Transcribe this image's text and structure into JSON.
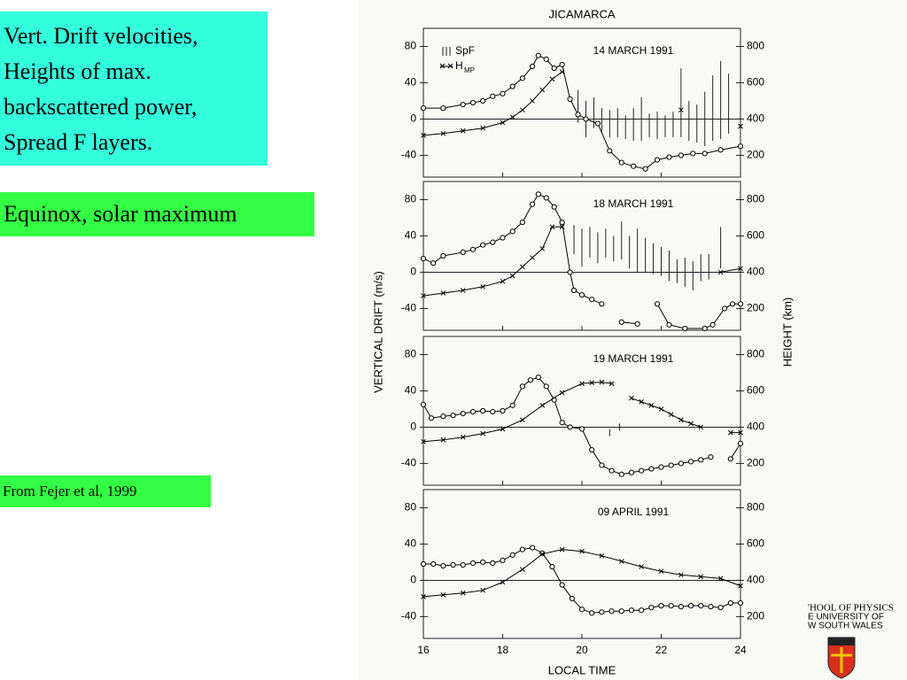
{
  "slide": {
    "box1": {
      "lines": [
        "Vert. Drift velocities,",
        "Heights of max.",
        "backscattered power,",
        "Spread F layers."
      ]
    },
    "box2": "Equinox, solar maximum",
    "source": "From Fejer et al, 1999",
    "logo": {
      "lines": [
        "'HOOL OF PHYSICS",
        "E UNIVERSITY OF",
        "W SOUTH WALES"
      ]
    }
  },
  "figure": {
    "title": "JICAMARCA",
    "ylabel": "VERTICAL DRIFT (m/s)",
    "y2label": "HEIGHT (km)",
    "xlabel": "LOCAL TIME"
  },
  "chart_data": [
    {
      "type": "line",
      "title": "14 MARCH 1991",
      "xlim": [
        16,
        24
      ],
      "xticks": [
        16,
        18,
        20,
        22,
        24
      ],
      "ylim": [
        -64,
        100
      ],
      "yticks": [
        -40,
        0,
        40,
        80
      ],
      "y2lim": [
        80,
        900
      ],
      "y2ticks": [
        200,
        400,
        600,
        800
      ],
      "series": [
        {
          "x": [
            16,
            16.5,
            17,
            17.25,
            17.5,
            17.75,
            18,
            18.25,
            18.5,
            18.75,
            18.9,
            19.1,
            19.3,
            19.5,
            19.7,
            19.9,
            20.1,
            20.4,
            20.7,
            21,
            21.3,
            21.6,
            21.9,
            22.2,
            22.5,
            22.8,
            23.1,
            23.5,
            24
          ],
          "values": [
            12,
            12,
            16,
            18,
            20,
            25,
            28,
            36,
            45,
            58,
            70,
            66,
            56,
            60,
            22,
            5,
            0,
            -5,
            -35,
            -48,
            -52,
            -55,
            -45,
            -42,
            -40,
            -38,
            -38,
            -34,
            -30
          ],
          "color": "#000000",
          "marker": "circle"
        },
        {
          "name": "H",
          "name_sub": "MP",
          "axis": "y2",
          "x": [
            16,
            16.5,
            17,
            17.5,
            18,
            18.25,
            18.5,
            18.75,
            19,
            19.25,
            19.5,
            20,
            22.5,
            23,
            24
          ],
          "values": [
            310,
            320,
            335,
            350,
            380,
            410,
            450,
            500,
            560,
            620,
            660,
            null,
            450,
            null,
            360
          ],
          "color": "#000000",
          "marker": "cross"
        }
      ],
      "spf": {
        "name": "SpF",
        "x": [
          19.9,
          20.1,
          20.3,
          20.5,
          20.7,
          20.9,
          21.1,
          21.3,
          21.5,
          21.7,
          21.9,
          22.1,
          22.3,
          22.5,
          22.7,
          22.9,
          23.1,
          23.3,
          23.5,
          23.7
        ],
        "low": [
          380,
          300,
          350,
          330,
          300,
          300,
          290,
          280,
          280,
          300,
          290,
          300,
          300,
          300,
          280,
          270,
          250,
          280,
          290,
          320
        ],
        "high": [
          560,
          500,
          520,
          460,
          450,
          460,
          420,
          460,
          520,
          430,
          440,
          420,
          440,
          680,
          500,
          480,
          550,
          640,
          720,
          650
        ]
      }
    },
    {
      "type": "line",
      "title": "18 MARCH 1991",
      "xlim": [
        16,
        24
      ],
      "xticks": [
        16,
        18,
        20,
        22,
        24
      ],
      "ylim": [
        -64,
        100
      ],
      "yticks": [
        -40,
        0,
        40,
        80
      ],
      "y2lim": [
        80,
        900
      ],
      "y2ticks": [
        200,
        400,
        600,
        800
      ],
      "series": [
        {
          "x": [
            16,
            16.25,
            16.5,
            17,
            17.25,
            17.5,
            17.75,
            18,
            18.25,
            18.5,
            18.75,
            18.9,
            19.1,
            19.3,
            19.5,
            19.7,
            19.8,
            20,
            20.25,
            20.5,
            20.7,
            21,
            21.4,
            21.6,
            21.9,
            22.2,
            22.6,
            23.1,
            23.3,
            23.6,
            23.8,
            24
          ],
          "values": [
            15,
            10,
            18,
            22,
            25,
            30,
            33,
            38,
            45,
            55,
            75,
            86,
            82,
            72,
            55,
            0,
            -20,
            -25,
            -30,
            -35,
            null,
            -55,
            -57,
            null,
            -35,
            -58,
            -62,
            -62,
            -58,
            -40,
            -35,
            -35
          ],
          "color": "#000000",
          "marker": "circle"
        },
        {
          "axis": "y2",
          "x": [
            16,
            16.5,
            17,
            17.5,
            18,
            18.25,
            18.5,
            18.75,
            19,
            19.25,
            19.5,
            20,
            23.5,
            24
          ],
          "values": [
            270,
            285,
            300,
            320,
            350,
            380,
            430,
            480,
            530,
            650,
            650,
            null,
            400,
            420
          ],
          "color": "#000000",
          "marker": "cross"
        }
      ],
      "spf": {
        "x": [
          19.8,
          20,
          20.2,
          20.4,
          20.6,
          20.8,
          21,
          21.2,
          21.4,
          21.6,
          21.8,
          22,
          22.2,
          22.4,
          22.6,
          22.8,
          23,
          23.2,
          23.5
        ],
        "low": [
          500,
          430,
          480,
          450,
          480,
          460,
          470,
          420,
          400,
          400,
          390,
          380,
          350,
          340,
          320,
          300,
          350,
          360,
          420
        ],
        "high": [
          660,
          640,
          650,
          620,
          640,
          600,
          680,
          600,
          640,
          590,
          560,
          540,
          520,
          470,
          480,
          460,
          500,
          500,
          650
        ]
      }
    },
    {
      "type": "line",
      "title": "19 MARCH 1991",
      "xlim": [
        16,
        24
      ],
      "xticks": [
        16,
        18,
        20,
        22,
        24
      ],
      "ylim": [
        -64,
        100
      ],
      "yticks": [
        -40,
        0,
        40,
        80
      ],
      "y2lim": [
        80,
        900
      ],
      "y2ticks": [
        200,
        400,
        600,
        800
      ],
      "series": [
        {
          "x": [
            16,
            16.2,
            16.5,
            16.75,
            17,
            17.25,
            17.5,
            17.75,
            18,
            18.25,
            18.5,
            18.7,
            18.9,
            19.1,
            19.3,
            19.5,
            19.7,
            20,
            20.25,
            20.5,
            20.75,
            21,
            21.25,
            21.5,
            21.75,
            22,
            22.25,
            22.5,
            22.75,
            23,
            23.25,
            23.5,
            23.75,
            24
          ],
          "values": [
            25,
            10,
            12,
            13,
            15,
            17,
            18,
            17,
            18,
            24,
            45,
            52,
            55,
            45,
            30,
            5,
            0,
            -2,
            -25,
            -42,
            -48,
            -52,
            -50,
            -48,
            -46,
            -44,
            -42,
            -40,
            -38,
            -36,
            -33,
            null,
            -35,
            -18
          ],
          "color": "#000000",
          "marker": "circle"
        },
        {
          "axis": "y2",
          "x": [
            16,
            16.5,
            17,
            17.5,
            18,
            18.5,
            19,
            19.5,
            20,
            20.25,
            20.5,
            20.75,
            21,
            21.25,
            21.5,
            21.75,
            22,
            22.25,
            22.5,
            22.75,
            23,
            23.5,
            23.75,
            24
          ],
          "values": [
            320,
            330,
            345,
            365,
            390,
            440,
            520,
            590,
            640,
            645,
            648,
            640,
            null,
            560,
            540,
            520,
            500,
            470,
            440,
            420,
            400,
            null,
            370,
            370
          ],
          "color": "#000000",
          "marker": "cross"
        }
      ],
      "spf": {
        "x": [
          20.7,
          20.95
        ],
        "low": [
          350,
          380
        ],
        "high": [
          390,
          420
        ]
      }
    },
    {
      "type": "line",
      "title": "09 APRIL 1991",
      "xlim": [
        16,
        24
      ],
      "xticks": [
        16,
        18,
        20,
        22,
        24
      ],
      "ylim": [
        -64,
        100
      ],
      "yticks": [
        -40,
        0,
        40,
        80
      ],
      "y2lim": [
        80,
        900
      ],
      "y2ticks": [
        200,
        400,
        600,
        800
      ],
      "series": [
        {
          "x": [
            16,
            16.25,
            16.5,
            16.75,
            17,
            17.25,
            17.5,
            17.75,
            18,
            18.25,
            18.5,
            18.75,
            19,
            19.25,
            19.5,
            19.75,
            20,
            20.25,
            20.5,
            20.75,
            21,
            21.25,
            21.5,
            21.75,
            22,
            22.25,
            22.5,
            22.75,
            23,
            23.25,
            23.5,
            23.75,
            24
          ],
          "values": [
            18,
            18,
            16,
            17,
            17,
            19,
            20,
            19,
            22,
            28,
            34,
            36,
            30,
            15,
            -5,
            -20,
            -32,
            -36,
            -35,
            -34,
            -34,
            -33,
            -33,
            -30,
            -28,
            -28,
            -29,
            -28,
            -28,
            -29,
            -30,
            -25,
            -25
          ],
          "color": "#000000",
          "marker": "circle"
        },
        {
          "axis": "y2",
          "x": [
            16,
            16.5,
            17,
            17.5,
            18,
            18.5,
            19,
            19.5,
            20,
            20.5,
            21,
            21.5,
            22,
            22.5,
            23,
            23.5,
            24
          ],
          "values": [
            310,
            320,
            330,
            345,
            390,
            460,
            545,
            570,
            560,
            535,
            505,
            475,
            450,
            430,
            420,
            410,
            370
          ],
          "color": "#000000",
          "marker": "cross"
        }
      ]
    }
  ]
}
